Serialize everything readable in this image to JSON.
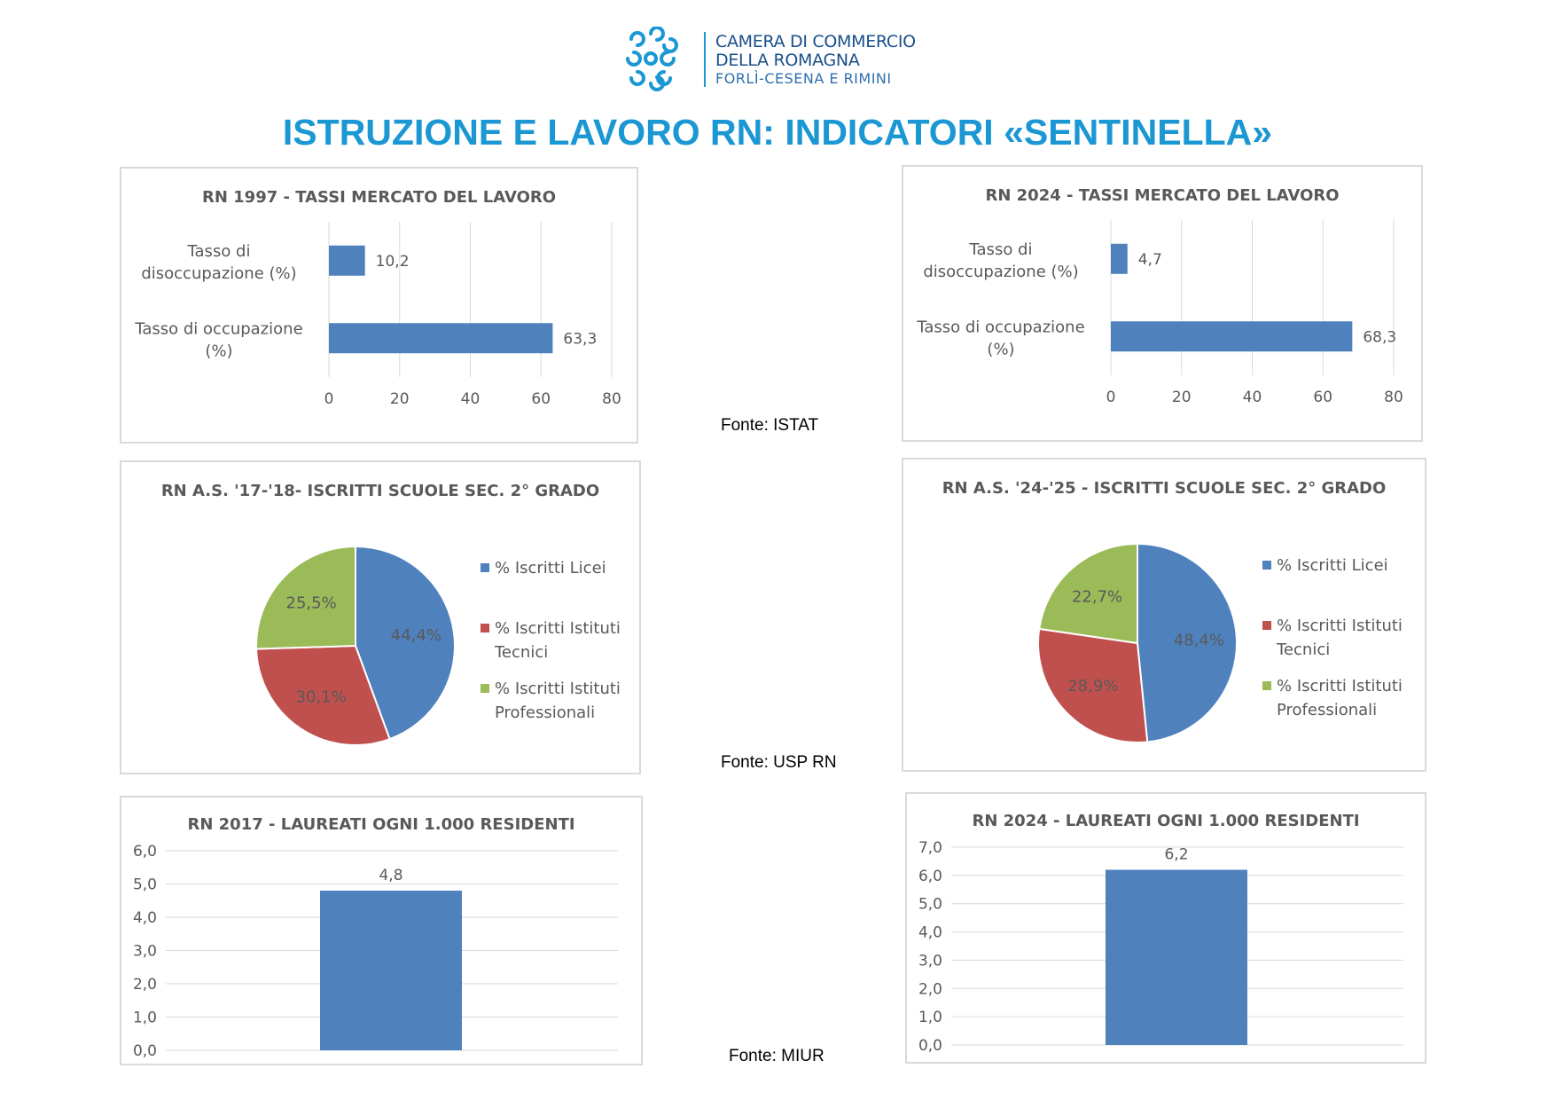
{
  "header": {
    "org_line1": "CAMERA DI COMMERCIO",
    "org_line2": "DELLA ROMAGNA",
    "org_line3": "FORLÌ-CESENA E RIMINI",
    "title": "ISTRUZIONE E LAVORO RN: INDICATORI «SENTINELLA»"
  },
  "sources": {
    "labour": "Fonte: ISTAT",
    "schools": "Fonte: USP RN",
    "graduates": "Fonte: MIUR"
  },
  "colors": {
    "title": "#1b97d3",
    "bar": "#4f81bd",
    "licei": "#4f81bd",
    "tecnici": "#c0504d",
    "professionali": "#9bbb59",
    "logo": "#1b97d3"
  },
  "chart_data": [
    {
      "id": "labour_1997",
      "type": "bar",
      "orientation": "horizontal",
      "title": "RN 1997 - TASSI MERCATO DEL LAVORO",
      "categories": [
        [
          "Tasso di",
          "disoccupazione (%)"
        ],
        [
          "Tasso di occupazione",
          "(%)"
        ]
      ],
      "values": [
        10.2,
        63.3
      ],
      "value_labels": [
        "10,2",
        "63,3"
      ],
      "xlim": [
        0,
        80
      ],
      "ticks": [
        0,
        20,
        40,
        60,
        80
      ],
      "grid": true
    },
    {
      "id": "labour_2024",
      "type": "bar",
      "orientation": "horizontal",
      "title": "RN 2024 - TASSI MERCATO DEL LAVORO",
      "categories": [
        [
          "Tasso di",
          "disoccupazione (%)"
        ],
        [
          "Tasso di occupazione",
          "(%)"
        ]
      ],
      "values": [
        4.7,
        68.3
      ],
      "value_labels": [
        "4,7",
        "68,3"
      ],
      "xlim": [
        0,
        80
      ],
      "ticks": [
        0,
        20,
        40,
        60,
        80
      ],
      "grid": true
    },
    {
      "id": "schools_1718",
      "type": "pie",
      "title": "RN A.S. '17-'18- ISCRITTI SCUOLE SEC. 2° GRADO",
      "labels": [
        "% Iscritti Licei",
        "% Iscritti Istituti Tecnici",
        "% Iscritti Istituti Professionali"
      ],
      "values": [
        44.4,
        30.1,
        25.5
      ],
      "value_labels": [
        "44,4%",
        "30,1%",
        "25,5%"
      ],
      "legend": "right"
    },
    {
      "id": "schools_2425",
      "type": "pie",
      "title": "RN A.S. '24-'25 - ISCRITTI SCUOLE SEC. 2° GRADO",
      "labels": [
        "% Iscritti Licei",
        "% Iscritti Istituti Tecnici",
        "% Iscritti Istituti Professionali"
      ],
      "values": [
        48.4,
        28.9,
        22.7
      ],
      "value_labels": [
        "48,4%",
        "28,9%",
        "22,7%"
      ],
      "legend": "right"
    },
    {
      "id": "graduates_2017",
      "type": "bar",
      "orientation": "vertical",
      "title": "RN 2017 - LAUREATI OGNI 1.000 RESIDENTI",
      "values": [
        4.8
      ],
      "value_labels": [
        "4,8"
      ],
      "ylim": [
        0,
        6
      ],
      "ticks": [
        "0,0",
        "1,0",
        "2,0",
        "3,0",
        "4,0",
        "5,0",
        "6,0"
      ],
      "grid": true
    },
    {
      "id": "graduates_2024",
      "type": "bar",
      "orientation": "vertical",
      "title": "RN 2024 - LAUREATI OGNI 1.000 RESIDENTI",
      "values": [
        6.2
      ],
      "value_labels": [
        "6,2"
      ],
      "ylim": [
        0,
        7
      ],
      "ticks": [
        "0,0",
        "1,0",
        "2,0",
        "3,0",
        "4,0",
        "5,0",
        "6,0",
        "7,0"
      ],
      "grid": true
    }
  ]
}
